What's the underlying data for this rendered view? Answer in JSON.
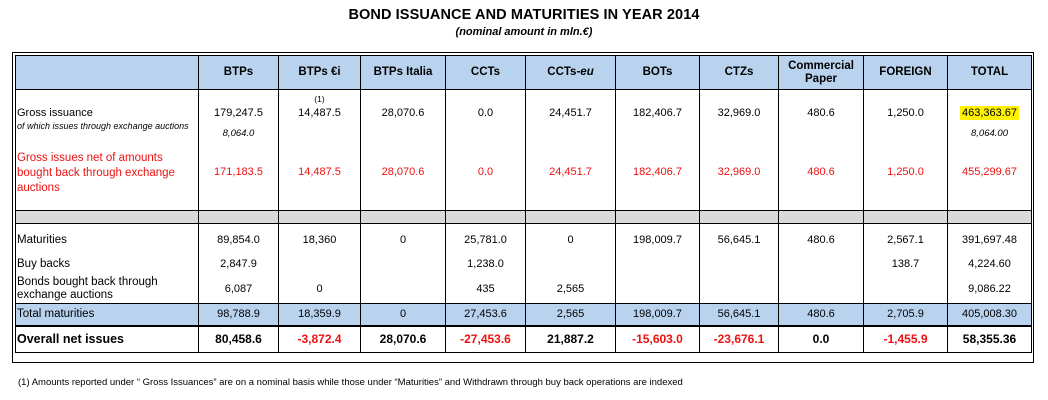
{
  "title": "BOND ISSUANCE  AND MATURITIES IN YEAR 2014",
  "subtitle": "(nominal amount in mln.€)",
  "columns": [
    "BTPs",
    "BTPs €i",
    "BTPs Italia",
    "CCTs",
    "CCTs-eu",
    "BOTs",
    "CTZs",
    "Commercial Paper",
    "FOREIGN",
    "TOTAL"
  ],
  "columns_display": {
    "c0": "BTPs",
    "c1": "BTPs €i",
    "c2": "BTPs Italia",
    "c3": "CCTs",
    "c4_main": "CCTs-",
    "c4_suffix": "eu",
    "c5": "BOTs",
    "c6": "CTZs",
    "c7": "Commercial Paper",
    "c8": "FOREIGN",
    "c9": "TOTAL"
  },
  "footnote_marker": "(1)",
  "rows": {
    "gross": {
      "label": "Gross issuance",
      "values": [
        "179,247.5",
        "14,487.5",
        "28,070.6",
        "0.0",
        "24,451.7",
        "182,406.7",
        "32,969.0",
        "480.6",
        "1,250.0",
        "463,363.67"
      ]
    },
    "gross_exchange": {
      "label": "of which issues through exchange auctions",
      "btps": "8,064.0",
      "total": "8,064.00"
    },
    "gross_net": {
      "label": "Gross issues net of amounts bought back through exchange auctions",
      "values": [
        "171,183.5",
        "14,487.5",
        "28,070.6",
        "0.0",
        "24,451.7",
        "182,406.7",
        "32,969.0",
        "480.6",
        "1,250.0",
        "455,299.67"
      ]
    },
    "maturities": {
      "label": "Maturities",
      "values": [
        "89,854.0",
        "18,360",
        "0",
        "25,781.0",
        "0",
        "198,009.7",
        "56,645.1",
        "480.6",
        "2,567.1",
        "391,697.48"
      ]
    },
    "buybacks": {
      "label": "Buy backs",
      "values": [
        "2,847.9",
        "",
        "",
        "1,238.0",
        "",
        "",
        "",
        "",
        "138.7",
        "4,224.60"
      ]
    },
    "bonds_bought": {
      "label": "Bonds bought back through exchange auctions",
      "values": [
        "6,087",
        "0",
        "",
        "435",
        "2,565",
        "",
        "",
        "",
        "",
        "9,086.22"
      ]
    },
    "total_maturities": {
      "label": "Total maturities",
      "values": [
        "98,788.9",
        "18,359.9",
        "0",
        "27,453.6",
        "2,565",
        "198,009.7",
        "56,645.1",
        "480.6",
        "2,705.9",
        "405,008.30"
      ]
    },
    "overall": {
      "label": "Overall net issues",
      "values": [
        "80,458.6",
        "-3,872.4",
        "28,070.6",
        "-27,453.6",
        "21,887.2",
        "-15,603.0",
        "-23,676.1",
        "0.0",
        "-1,455.9",
        "58,355.36"
      ]
    }
  },
  "footnote": "(1) Amounts reported under “ Gross Issuances” are on a nominal basis while those under “Maturities” and  Withdrawn through buy back operations are indexed",
  "colors": {
    "header_bg": "#b9d3ee",
    "red": "#ee1111",
    "highlight": "#fff200",
    "spacer": "#d9d9d9"
  }
}
